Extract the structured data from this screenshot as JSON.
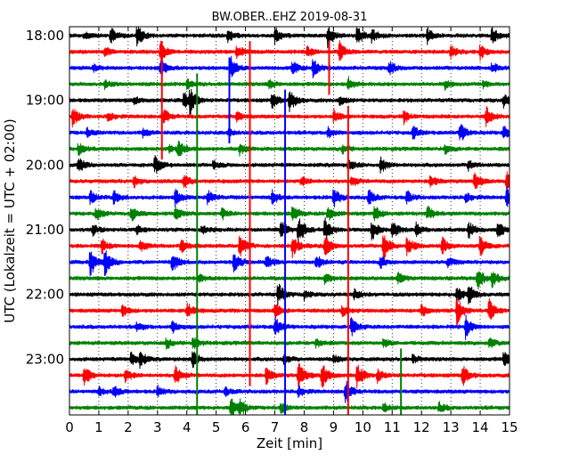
{
  "chart_data": {
    "type": "line",
    "title": "BW.OBER..EHZ 2019-08-31",
    "xlabel": "Zeit  [min]",
    "ylabel": "UTC (Lokalzeit = UTC + 02:00)",
    "xlim": [
      0,
      15
    ],
    "x_ticks": [
      "0",
      "1",
      "2",
      "3",
      "4",
      "5",
      "6",
      "7",
      "8",
      "9",
      "10",
      "11",
      "12",
      "13",
      "14",
      "15"
    ],
    "y_ticks": [
      "18:00",
      "19:00",
      "20:00",
      "21:00",
      "22:00",
      "23:00"
    ],
    "grid": "vertical-dotted",
    "trace_color_cycle": [
      "#000000",
      "#ff0000",
      "#0000ff",
      "#008000"
    ],
    "series": [
      {
        "start": "18:00",
        "events": [
          [
            0.5,
            4
          ],
          [
            1.4,
            9
          ],
          [
            2.3,
            13
          ],
          [
            5.4,
            7
          ],
          [
            7.0,
            9
          ],
          [
            8.8,
            12
          ],
          [
            9.8,
            11
          ],
          [
            10.3,
            8
          ],
          [
            12.2,
            9
          ],
          [
            14.4,
            10
          ]
        ]
      },
      {
        "start": "18:15",
        "events": [
          [
            1.2,
            5
          ],
          [
            3.1,
            11
          ],
          [
            5.7,
            8
          ],
          [
            8.1,
            6
          ],
          [
            9.2,
            12
          ],
          [
            13.0,
            7
          ],
          [
            14.0,
            8
          ]
        ]
      },
      {
        "start": "18:30",
        "events": [
          [
            0.8,
            4
          ],
          [
            3.1,
            10
          ],
          [
            5.5,
            14
          ],
          [
            7.6,
            8
          ],
          [
            8.3,
            12
          ],
          [
            10.9,
            9
          ],
          [
            14.4,
            6
          ]
        ]
      },
      {
        "start": "18:45",
        "events": [
          [
            1.2,
            5
          ],
          [
            4.0,
            6
          ],
          [
            6.8,
            5
          ],
          [
            9.5,
            8
          ],
          [
            12.8,
            5
          ],
          [
            14.1,
            4
          ]
        ]
      },
      {
        "start": "19:00",
        "events": [
          [
            2.2,
            4
          ],
          [
            3.9,
            11
          ],
          [
            4.1,
            13
          ],
          [
            6.9,
            9
          ],
          [
            7.5,
            13
          ],
          [
            9.2,
            6
          ],
          [
            14.8,
            7
          ]
        ]
      },
      {
        "start": "19:15",
        "events": [
          [
            0.1,
            12
          ],
          [
            1.3,
            6
          ],
          [
            3.2,
            9
          ],
          [
            5.7,
            5
          ],
          [
            9.0,
            8
          ],
          [
            11.4,
            7
          ],
          [
            14.2,
            11
          ]
        ]
      },
      {
        "start": "19:30",
        "events": [
          [
            0.6,
            5
          ],
          [
            2.5,
            5
          ],
          [
            5.4,
            4
          ],
          [
            8.8,
            6
          ],
          [
            11.7,
            8
          ],
          [
            13.3,
            12
          ],
          [
            14.8,
            9
          ]
        ]
      },
      {
        "start": "19:45",
        "events": [
          [
            0.3,
            7
          ],
          [
            3.4,
            5
          ],
          [
            3.7,
            9
          ],
          [
            5.8,
            6
          ],
          [
            9.3,
            5
          ],
          [
            12.8,
            5
          ]
        ]
      },
      {
        "start": "20:00",
        "events": [
          [
            0.3,
            9
          ],
          [
            2.9,
            11
          ],
          [
            4.9,
            5
          ],
          [
            9.5,
            7
          ],
          [
            10.6,
            9
          ],
          [
            13.6,
            6
          ]
        ]
      },
      {
        "start": "20:15",
        "events": [
          [
            2.2,
            6
          ],
          [
            3.9,
            8
          ],
          [
            7.9,
            5
          ],
          [
            9.6,
            6
          ],
          [
            12.3,
            7
          ],
          [
            13.8,
            10
          ],
          [
            14.9,
            12
          ]
        ]
      },
      {
        "start": "20:30",
        "events": [
          [
            0.7,
            7
          ],
          [
            1.5,
            8
          ],
          [
            3.6,
            9
          ],
          [
            4.7,
            8
          ],
          [
            6.9,
            9
          ],
          [
            9.0,
            11
          ],
          [
            10.2,
            9
          ],
          [
            11.5,
            7
          ],
          [
            13.5,
            6
          ],
          [
            14.9,
            12
          ]
        ]
      },
      {
        "start": "20:45",
        "events": [
          [
            0.9,
            8
          ],
          [
            2.1,
            9
          ],
          [
            3.6,
            8
          ],
          [
            5.2,
            7
          ],
          [
            7.6,
            9
          ],
          [
            8.8,
            9
          ],
          [
            10.4,
            10
          ],
          [
            12.2,
            8
          ]
        ]
      },
      {
        "start": "21:00",
        "events": [
          [
            0.8,
            6
          ],
          [
            2.3,
            5
          ],
          [
            4.5,
            5
          ],
          [
            7.2,
            11
          ],
          [
            7.8,
            18
          ],
          [
            8.7,
            13
          ],
          [
            10.3,
            12
          ],
          [
            11.0,
            10
          ],
          [
            11.8,
            8
          ],
          [
            13.6,
            10
          ],
          [
            14.6,
            11
          ]
        ]
      },
      {
        "start": "21:15",
        "events": [
          [
            1.1,
            8
          ],
          [
            2.4,
            7
          ],
          [
            3.8,
            8
          ],
          [
            5.8,
            14
          ],
          [
            7.6,
            12
          ],
          [
            8.7,
            13
          ],
          [
            10.7,
            16
          ],
          [
            11.5,
            12
          ],
          [
            12.7,
            10
          ],
          [
            14.0,
            14
          ]
        ]
      },
      {
        "start": "21:30",
        "events": [
          [
            0.7,
            17
          ],
          [
            1.2,
            16
          ],
          [
            3.5,
            12
          ],
          [
            5.6,
            11
          ],
          [
            6.7,
            8
          ],
          [
            8.4,
            9
          ],
          [
            10.6,
            7
          ],
          [
            12.9,
            6
          ]
        ]
      },
      {
        "start": "21:45",
        "events": [
          [
            4.4,
            5
          ],
          [
            8.7,
            7
          ],
          [
            11.2,
            6
          ],
          [
            13.9,
            14
          ],
          [
            14.4,
            11
          ]
        ]
      },
      {
        "start": "22:00",
        "events": [
          [
            7.1,
            13
          ],
          [
            8.0,
            5
          ],
          [
            9.7,
            6
          ],
          [
            13.2,
            9
          ],
          [
            13.6,
            13
          ]
        ]
      },
      {
        "start": "22:15",
        "events": [
          [
            1.8,
            7
          ],
          [
            4.0,
            9
          ],
          [
            7.0,
            8
          ],
          [
            9.3,
            6
          ],
          [
            12.0,
            7
          ],
          [
            13.2,
            17
          ],
          [
            14.3,
            14
          ]
        ]
      },
      {
        "start": "22:30",
        "events": [
          [
            2.3,
            5
          ],
          [
            3.5,
            7
          ],
          [
            7.0,
            12
          ],
          [
            9.6,
            11
          ],
          [
            13.5,
            13
          ]
        ]
      },
      {
        "start": "22:45",
        "events": [
          [
            3.3,
            6
          ],
          [
            4.2,
            7
          ],
          [
            8.4,
            5
          ],
          [
            10.7,
            5
          ],
          [
            14.3,
            6
          ]
        ]
      },
      {
        "start": "23:00",
        "events": [
          [
            2.1,
            9
          ],
          [
            2.4,
            8
          ],
          [
            4.2,
            10
          ],
          [
            7.3,
            6
          ],
          [
            9.0,
            5
          ],
          [
            11.7,
            5
          ],
          [
            14.8,
            9
          ]
        ]
      },
      {
        "start": "23:15",
        "events": [
          [
            0.5,
            13
          ],
          [
            1.9,
            7
          ],
          [
            3.6,
            12
          ],
          [
            6.7,
            10
          ],
          [
            7.8,
            17
          ],
          [
            8.6,
            16
          ],
          [
            9.8,
            14
          ],
          [
            10.5,
            7
          ],
          [
            13.4,
            12
          ]
        ]
      },
      {
        "start": "23:30",
        "events": [
          [
            1.0,
            5
          ],
          [
            1.5,
            7
          ],
          [
            3.0,
            6
          ],
          [
            5.3,
            5
          ],
          [
            7.8,
            6
          ],
          [
            9.4,
            14
          ]
        ]
      },
      {
        "start": "23:45",
        "events": [
          [
            5.5,
            12
          ],
          [
            5.8,
            9
          ],
          [
            7.2,
            6
          ],
          [
            10.7,
            5
          ],
          [
            12.6,
            6
          ]
        ]
      }
    ],
    "spikes": [
      {
        "x": 3.15,
        "from": 1,
        "to": 7,
        "color": "#ff0000"
      },
      {
        "x": 4.35,
        "from": 3,
        "to": 23,
        "color": "#008000"
      },
      {
        "x": 5.45,
        "from": 2,
        "to": 6,
        "color": "#0000ff"
      },
      {
        "x": 6.15,
        "from": 1,
        "to": 21,
        "color": "#ff0000"
      },
      {
        "x": 7.35,
        "from": 4,
        "to": 23,
        "color": "#0000ff"
      },
      {
        "x": 9.5,
        "from": 5,
        "to": 23,
        "color": "#ff0000"
      },
      {
        "x": 11.3,
        "from": 20,
        "to": 23,
        "color": "#008000"
      },
      {
        "x": 8.85,
        "from": 1,
        "to": 3,
        "color": "#ff0000"
      }
    ]
  }
}
